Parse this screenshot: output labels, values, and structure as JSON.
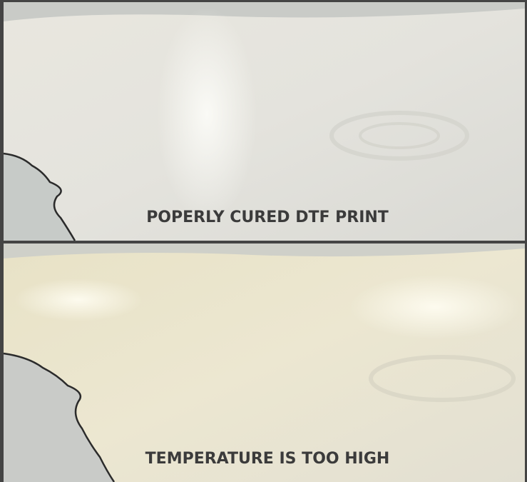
{
  "panels": [
    {
      "caption": "POPERLY CURED DTF PRINT"
    },
    {
      "caption": "TEMPERATURE IS TOO HIGH"
    }
  ]
}
